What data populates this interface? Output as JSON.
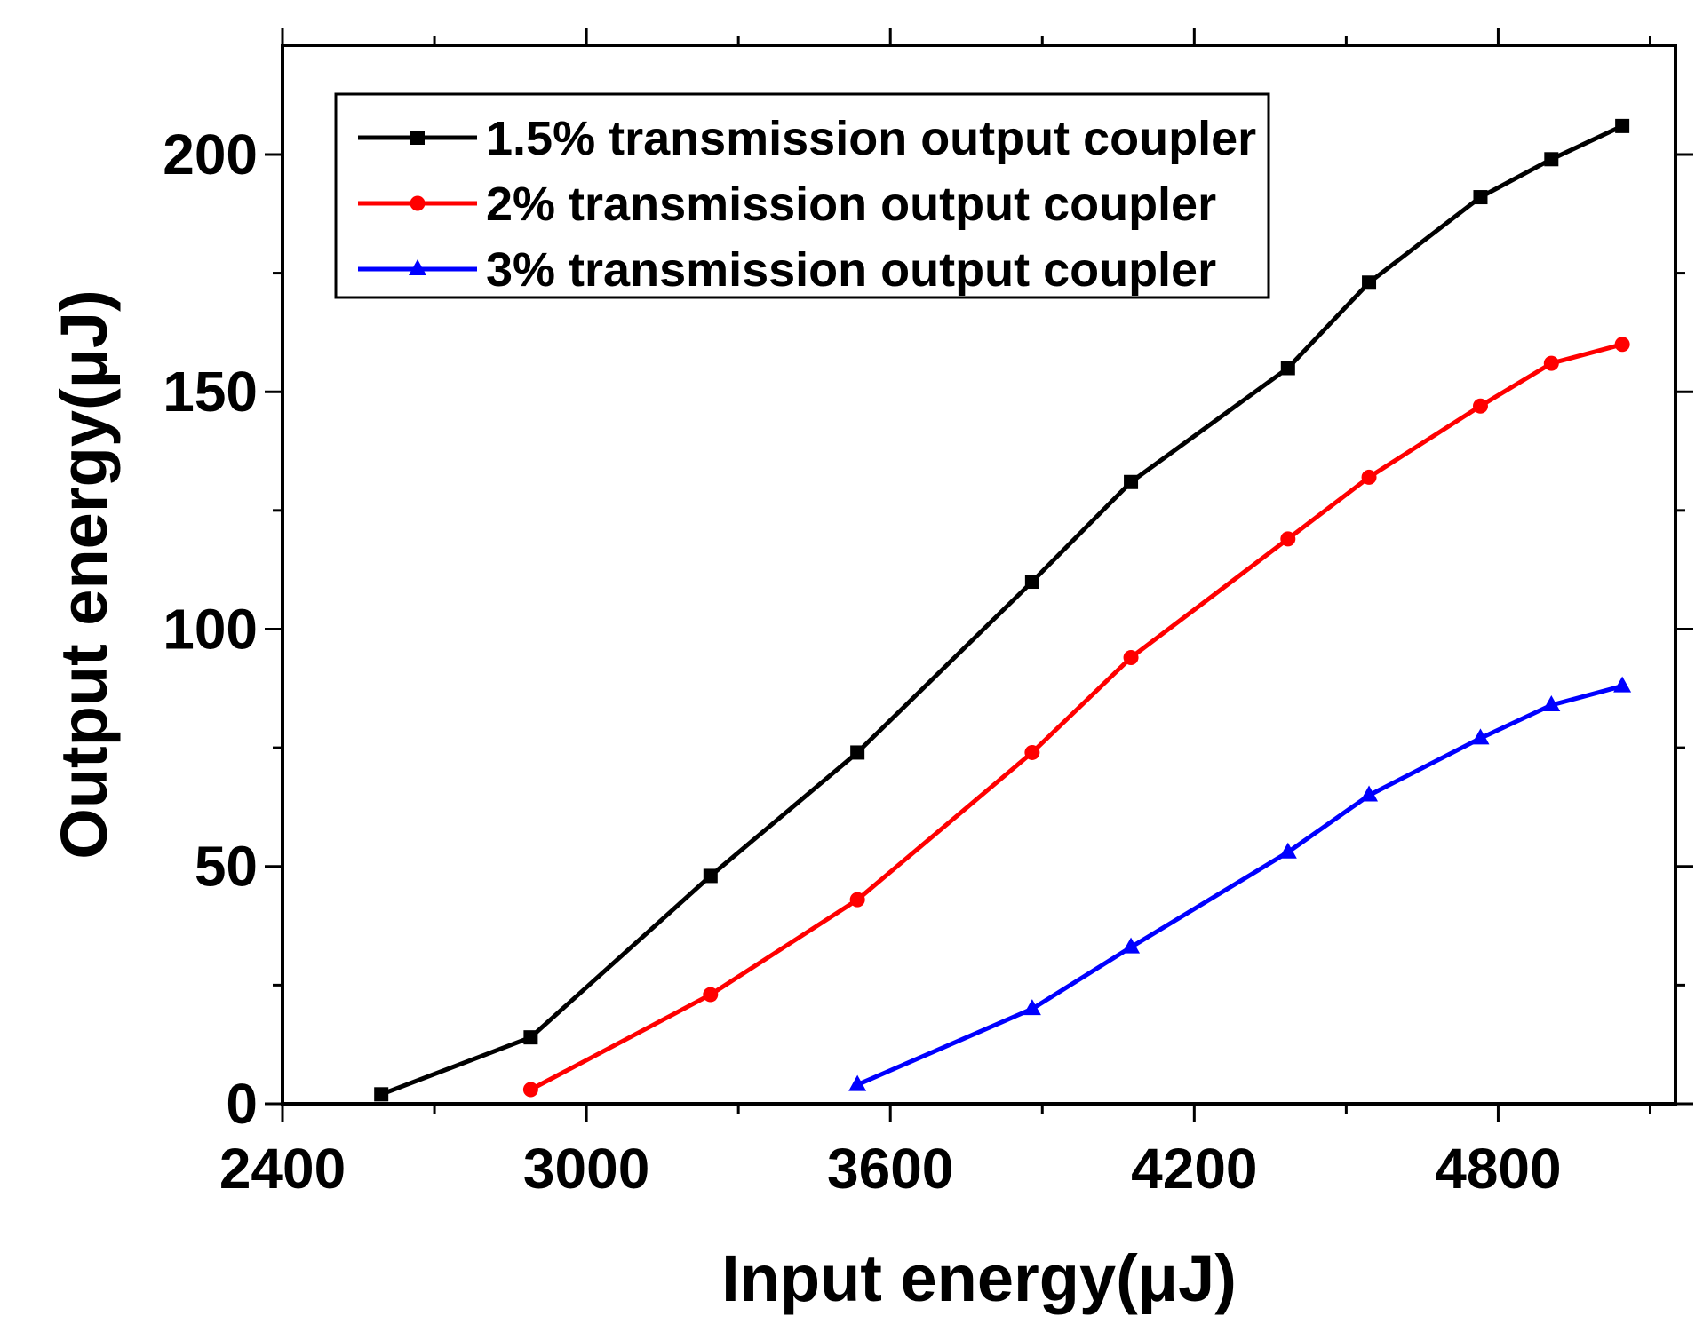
{
  "chart_data": {
    "type": "line",
    "title": "",
    "xlabel": "Input energy(μJ)",
    "ylabel": "Output energy(μJ)",
    "xlim": [
      2400,
      5150
    ],
    "ylim": [
      0,
      223
    ],
    "xticks": [
      2400,
      3000,
      3600,
      4200,
      4800
    ],
    "yticks": [
      0,
      50,
      100,
      150,
      200
    ],
    "x_minor_step": 300,
    "y_minor_step": 25,
    "grid": false,
    "legend_position": "top-left",
    "series": [
      {
        "name": "1.5% transmission output coupler",
        "color": "#000000",
        "marker": "square",
        "points": [
          {
            "x": 2595,
            "y": 2
          },
          {
            "x": 2890,
            "y": 14
          },
          {
            "x": 3245,
            "y": 48
          },
          {
            "x": 3535,
            "y": 74
          },
          {
            "x": 3880,
            "y": 110
          },
          {
            "x": 4075,
            "y": 131
          },
          {
            "x": 4385,
            "y": 155
          },
          {
            "x": 4545,
            "y": 173
          },
          {
            "x": 4765,
            "y": 191
          },
          {
            "x": 4905,
            "y": 199
          },
          {
            "x": 5045,
            "y": 206
          }
        ]
      },
      {
        "name": "2% transmission output coupler",
        "color": "#ff0000",
        "marker": "circle",
        "points": [
          {
            "x": 2890,
            "y": 3
          },
          {
            "x": 3245,
            "y": 23
          },
          {
            "x": 3535,
            "y": 43
          },
          {
            "x": 3880,
            "y": 74
          },
          {
            "x": 4075,
            "y": 94
          },
          {
            "x": 4385,
            "y": 119
          },
          {
            "x": 4545,
            "y": 132
          },
          {
            "x": 4765,
            "y": 147
          },
          {
            "x": 4905,
            "y": 156
          },
          {
            "x": 5045,
            "y": 160
          }
        ]
      },
      {
        "name": "3% transmission output coupler",
        "color": "#0000ff",
        "marker": "triangle",
        "points": [
          {
            "x": 3535,
            "y": 4
          },
          {
            "x": 3880,
            "y": 20
          },
          {
            "x": 4075,
            "y": 33
          },
          {
            "x": 4385,
            "y": 53
          },
          {
            "x": 4545,
            "y": 65
          },
          {
            "x": 4765,
            "y": 77
          },
          {
            "x": 4905,
            "y": 84
          },
          {
            "x": 5045,
            "y": 88
          }
        ]
      }
    ]
  }
}
